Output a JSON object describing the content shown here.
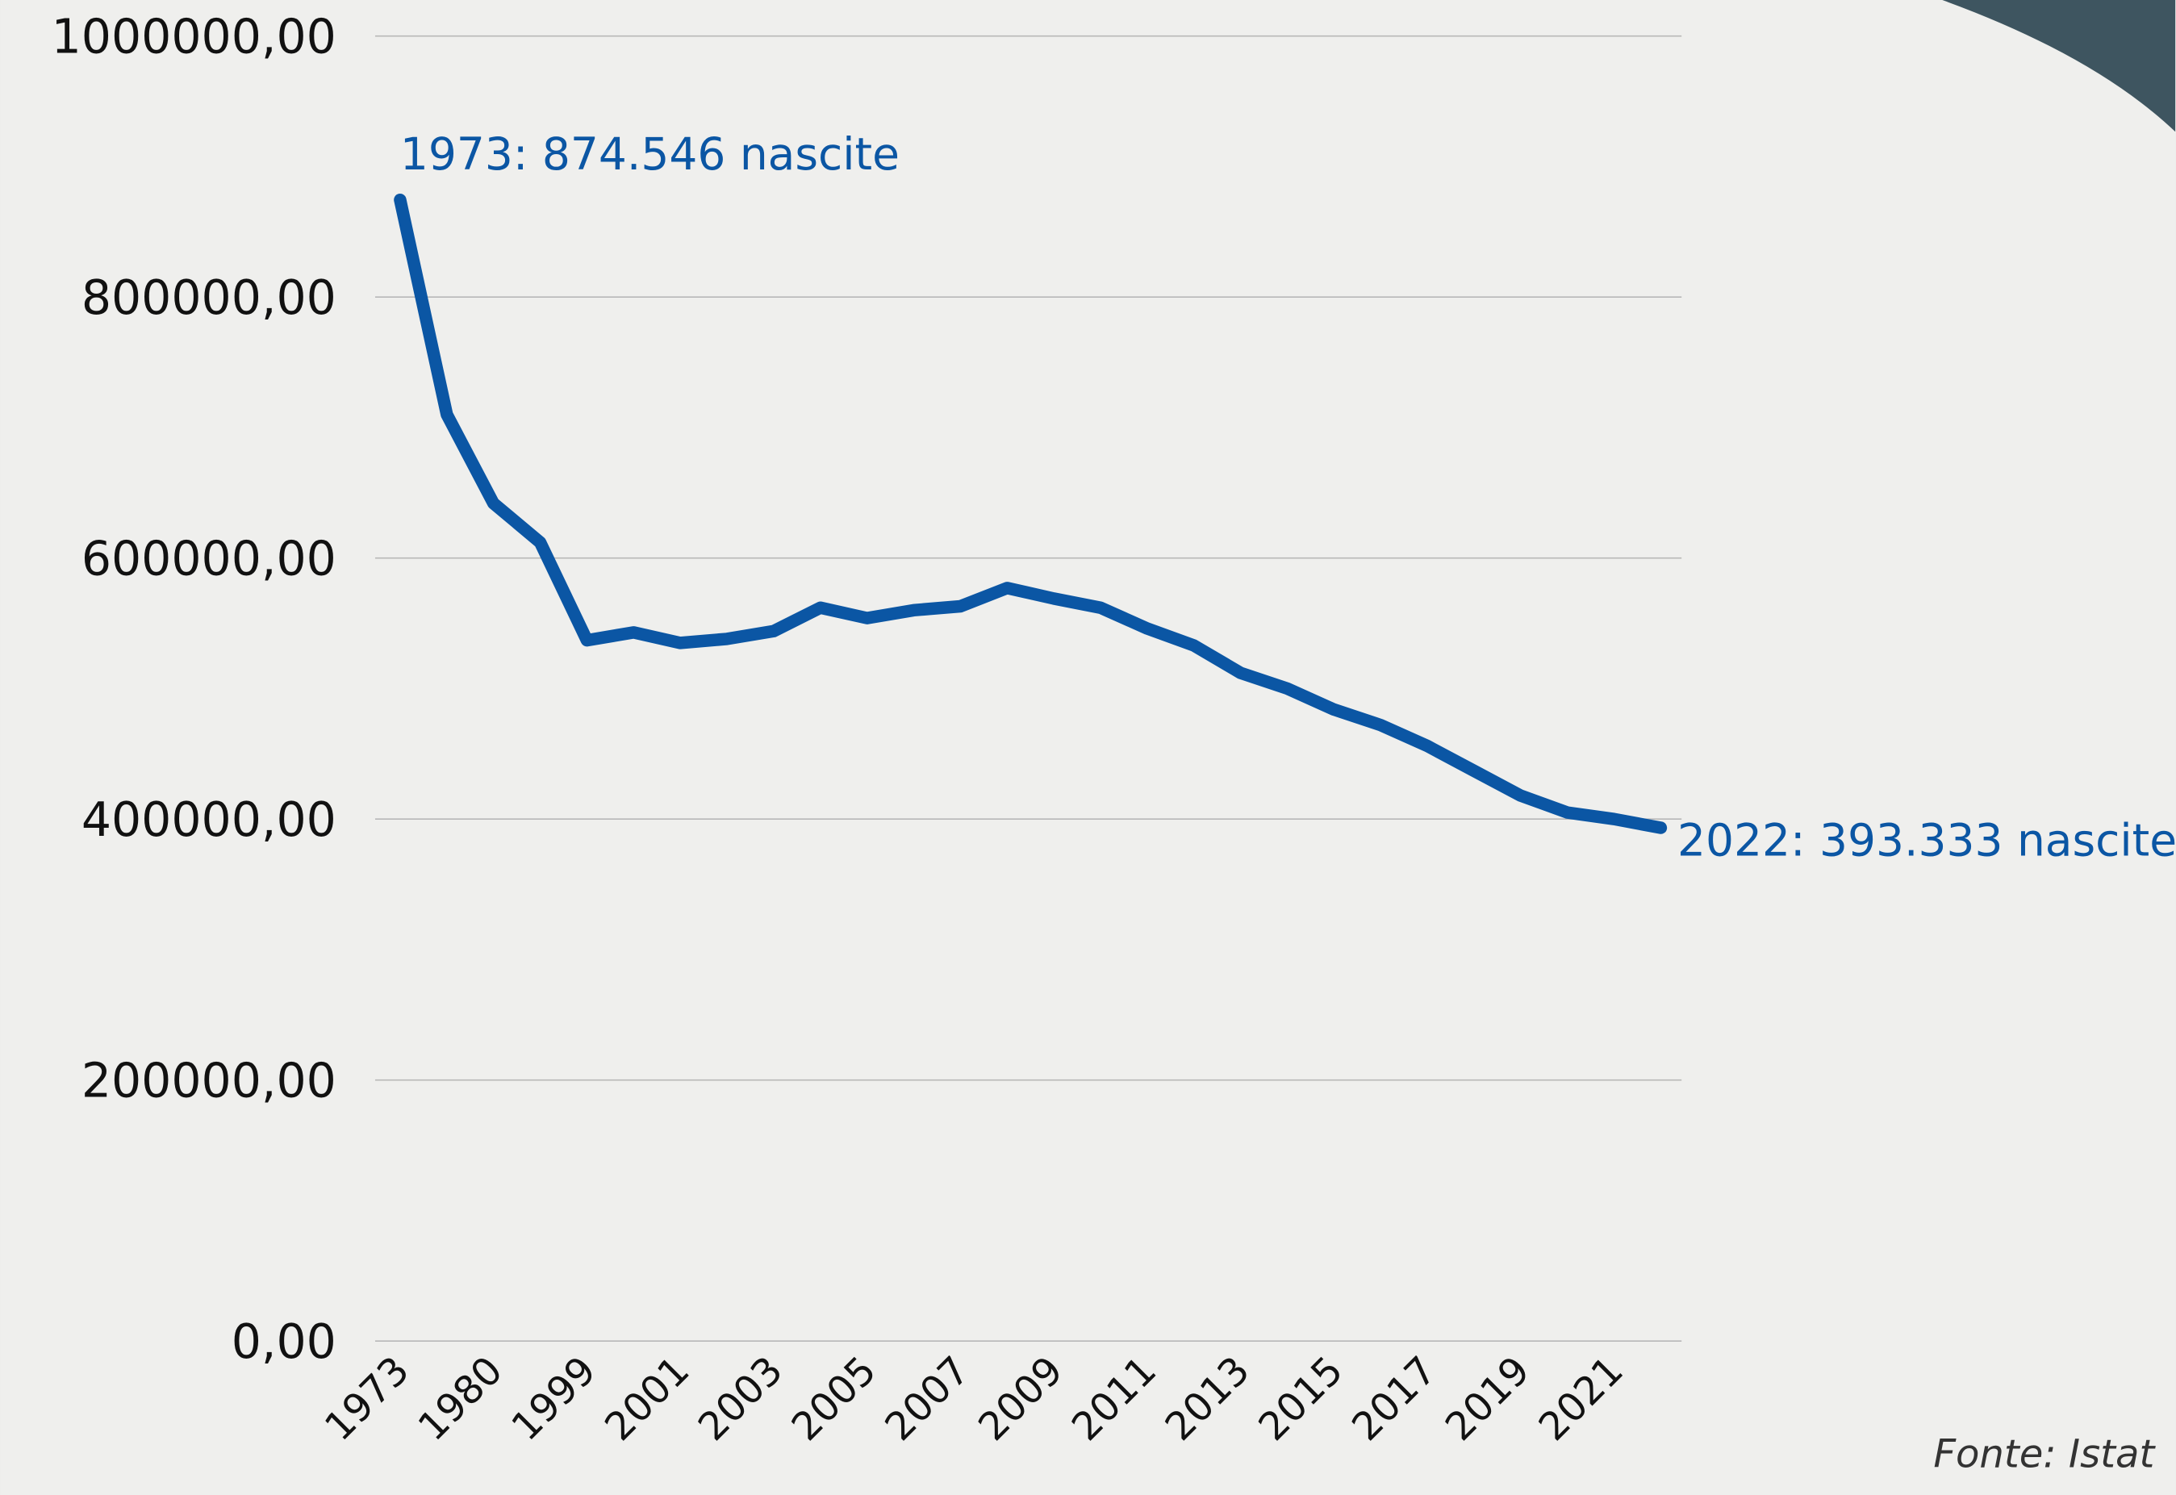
{
  "chart_data": {
    "type": "line",
    "categories": [
      "1973",
      null,
      "1980",
      null,
      "1999",
      null,
      "2001",
      null,
      "2003",
      null,
      "2005",
      null,
      "2007",
      null,
      "2009",
      null,
      "2011",
      null,
      "2013",
      null,
      "2015",
      null,
      "2017",
      null,
      "2019",
      null,
      "2021",
      null
    ],
    "series": [
      {
        "name": "Nascite",
        "color": "#0b56a4",
        "values": [
          874546,
          710000,
          642000,
          612000,
          537000,
          543000,
          535000,
          538000,
          544000,
          562000,
          554000,
          560000,
          563000,
          577000,
          569000,
          562000,
          546000,
          533000,
          512000,
          500000,
          484000,
          472000,
          456000,
          437000,
          418000,
          405000,
          400000,
          393333
        ]
      }
    ],
    "ylim": [
      0,
      1000000
    ],
    "yticks": [
      {
        "value": 0,
        "label": "0,00"
      },
      {
        "value": 200000,
        "label": "200000,00"
      },
      {
        "value": 400000,
        "label": "400000,00"
      },
      {
        "value": 600000,
        "label": "600000,00"
      },
      {
        "value": 800000,
        "label": "800000,00"
      },
      {
        "value": 1000000,
        "label": "1000000,00"
      }
    ],
    "grid": true,
    "annotations": [
      "1973: 874.546 nascite",
      "2022: 393.333 nascite"
    ],
    "source": "Fonte: Istat"
  }
}
